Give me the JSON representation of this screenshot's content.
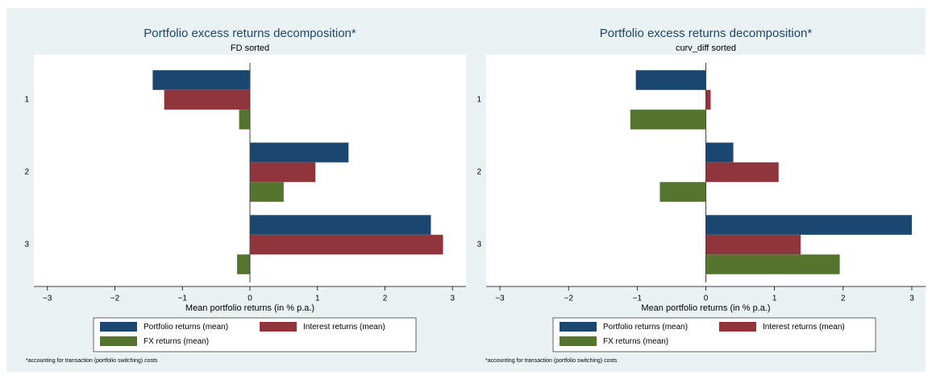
{
  "chart_data": [
    {
      "type": "bar",
      "orientation": "horizontal",
      "title": "Portfolio excess returns decomposition*",
      "subtitle": "FD sorted",
      "xlabel": "Mean portfolio returns (in % p.a.)",
      "note": "*accounting for transaction (portfolio switching) costs",
      "categories": [
        "1",
        "2",
        "3"
      ],
      "series": [
        {
          "name": "Portfolio returns (mean)",
          "color": "#1a476f",
          "values": [
            -1.44,
            1.46,
            2.68
          ]
        },
        {
          "name": "Interest returns (mean)",
          "color": "#90353b",
          "values": [
            -1.27,
            0.97,
            2.86
          ]
        },
        {
          "name": "FX returns (mean)",
          "color": "#55752f",
          "values": [
            -0.16,
            0.5,
            -0.19
          ]
        }
      ],
      "xlim": [
        -3.2,
        3.2
      ],
      "xticks": [
        {
          "value": -3,
          "label": "−3"
        },
        {
          "value": -2,
          "label": "−2"
        },
        {
          "value": -1,
          "label": "−1"
        },
        0,
        1,
        2,
        3
      ]
    },
    {
      "type": "bar",
      "orientation": "horizontal",
      "title": "Portfolio excess returns decomposition*",
      "subtitle": "curv_diff sorted",
      "xlabel": "Mean portfolio returns (in % p.a.)",
      "note": "*accounting for transaction (portfolio switching) costs",
      "categories": [
        "1",
        "2",
        "3"
      ],
      "series": [
        {
          "name": "Portfolio returns (mean)",
          "color": "#1a476f",
          "values": [
            -1.02,
            0.4,
            3.0
          ]
        },
        {
          "name": "Interest returns (mean)",
          "color": "#90353b",
          "values": [
            0.07,
            1.06,
            1.38
          ]
        },
        {
          "name": "FX returns (mean)",
          "color": "#55752f",
          "values": [
            -1.1,
            -0.67,
            1.95
          ]
        }
      ],
      "xlim": [
        -3.2,
        3.2
      ],
      "xticks": [
        {
          "value": -3,
          "label": "−3"
        },
        {
          "value": -2,
          "label": "−2"
        },
        {
          "value": -1,
          "label": "−1"
        },
        0,
        1,
        2,
        3
      ]
    }
  ]
}
